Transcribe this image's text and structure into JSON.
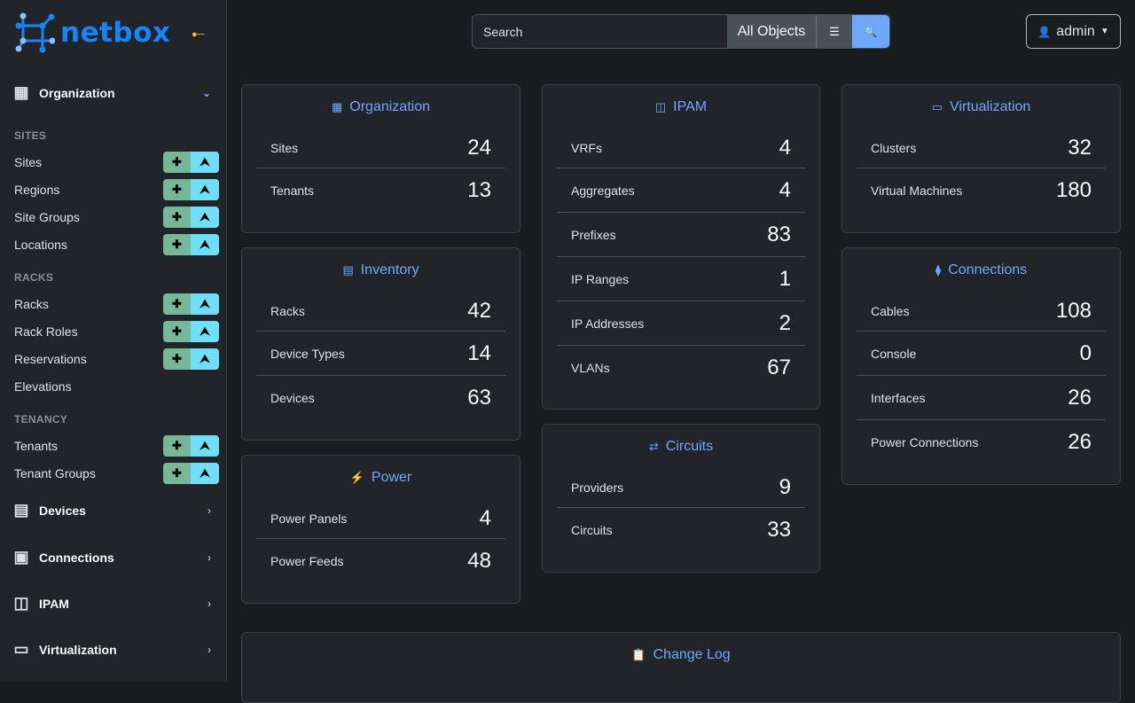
{
  "brand": {
    "name": "netbox"
  },
  "sidebar": {
    "organization": "Organization",
    "groups": [
      {
        "title": "SITES",
        "items": [
          "Sites",
          "Regions",
          "Site Groups",
          "Locations"
        ]
      },
      {
        "title": "RACKS",
        "items": [
          "Racks",
          "Rack Roles",
          "Reservations",
          "Elevations"
        ]
      },
      {
        "title": "TENANCY",
        "items": [
          "Tenants",
          "Tenant Groups"
        ]
      }
    ],
    "menus": [
      "Devices",
      "Connections",
      "IPAM",
      "Virtualization"
    ]
  },
  "search": {
    "placeholder": "Search",
    "scope": "All Objects"
  },
  "user": {
    "name": "admin"
  },
  "cards": {
    "organization": {
      "title": "Organization",
      "rows": [
        {
          "label": "Sites",
          "value": "24"
        },
        {
          "label": "Tenants",
          "value": "13"
        }
      ]
    },
    "inventory": {
      "title": "Inventory",
      "rows": [
        {
          "label": "Racks",
          "value": "42"
        },
        {
          "label": "Device Types",
          "value": "14"
        },
        {
          "label": "Devices",
          "value": "63"
        }
      ]
    },
    "power": {
      "title": "Power",
      "rows": [
        {
          "label": "Power Panels",
          "value": "4"
        },
        {
          "label": "Power Feeds",
          "value": "48"
        }
      ]
    },
    "ipam": {
      "title": "IPAM",
      "rows": [
        {
          "label": "VRFs",
          "value": "4"
        },
        {
          "label": "Aggregates",
          "value": "4"
        },
        {
          "label": "Prefixes",
          "value": "83"
        },
        {
          "label": "IP Ranges",
          "value": "1"
        },
        {
          "label": "IP Addresses",
          "value": "2"
        },
        {
          "label": "VLANs",
          "value": "67"
        }
      ]
    },
    "circuits": {
      "title": "Circuits",
      "rows": [
        {
          "label": "Providers",
          "value": "9"
        },
        {
          "label": "Circuits",
          "value": "33"
        }
      ]
    },
    "virtualization": {
      "title": "Virtualization",
      "rows": [
        {
          "label": "Clusters",
          "value": "32"
        },
        {
          "label": "Virtual Machines",
          "value": "180"
        }
      ]
    },
    "connections": {
      "title": "Connections",
      "rows": [
        {
          "label": "Cables",
          "value": "108"
        },
        {
          "label": "Console",
          "value": "0"
        },
        {
          "label": "Interfaces",
          "value": "26"
        },
        {
          "label": "Power Connections",
          "value": "26"
        }
      ]
    },
    "changelog": {
      "title": "Change Log"
    }
  },
  "colors": {
    "accent": "#6ea8fe",
    "brand": "#1685fc",
    "add": "#75b798",
    "import": "#6edff6"
  }
}
